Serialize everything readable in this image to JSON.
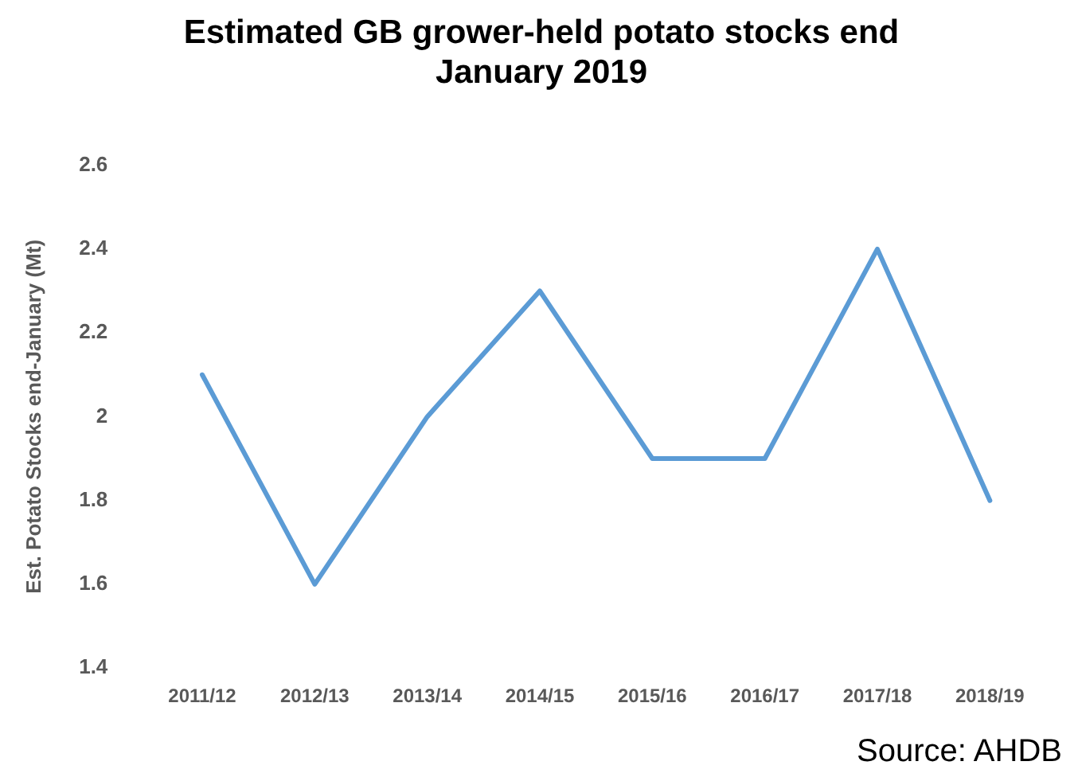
{
  "chart_data": {
    "type": "line",
    "title": "Estimated GB grower-held potato stocks end January 2019",
    "ylabel": "Est. Potato Stocks end-January (Mt)",
    "categories": [
      "2011/12",
      "2012/13",
      "2013/14",
      "2014/15",
      "2015/16",
      "2016/17",
      "2017/18",
      "2018/19"
    ],
    "series": [
      {
        "color": "#5b9bd5",
        "values": [
          2.1,
          1.6,
          2.0,
          2.3,
          1.9,
          1.9,
          2.4,
          1.8
        ]
      }
    ],
    "ylim": [
      1.4,
      2.6
    ],
    "yticks": [
      {
        "value": 1.4,
        "label": "1.4"
      },
      {
        "value": 1.6,
        "label": "1.6"
      },
      {
        "value": 1.8,
        "label": "1.8"
      },
      {
        "value": 2,
        "label": "2"
      },
      {
        "value": 2.2,
        "label": "2.2"
      },
      {
        "value": 2.4,
        "label": "2.4"
      },
      {
        "value": 2.6,
        "label": "2.6"
      }
    ],
    "grid": false,
    "legend": false,
    "marker": "none",
    "line_style": "solid",
    "annotations": [
      "Source: AHDB"
    ]
  }
}
